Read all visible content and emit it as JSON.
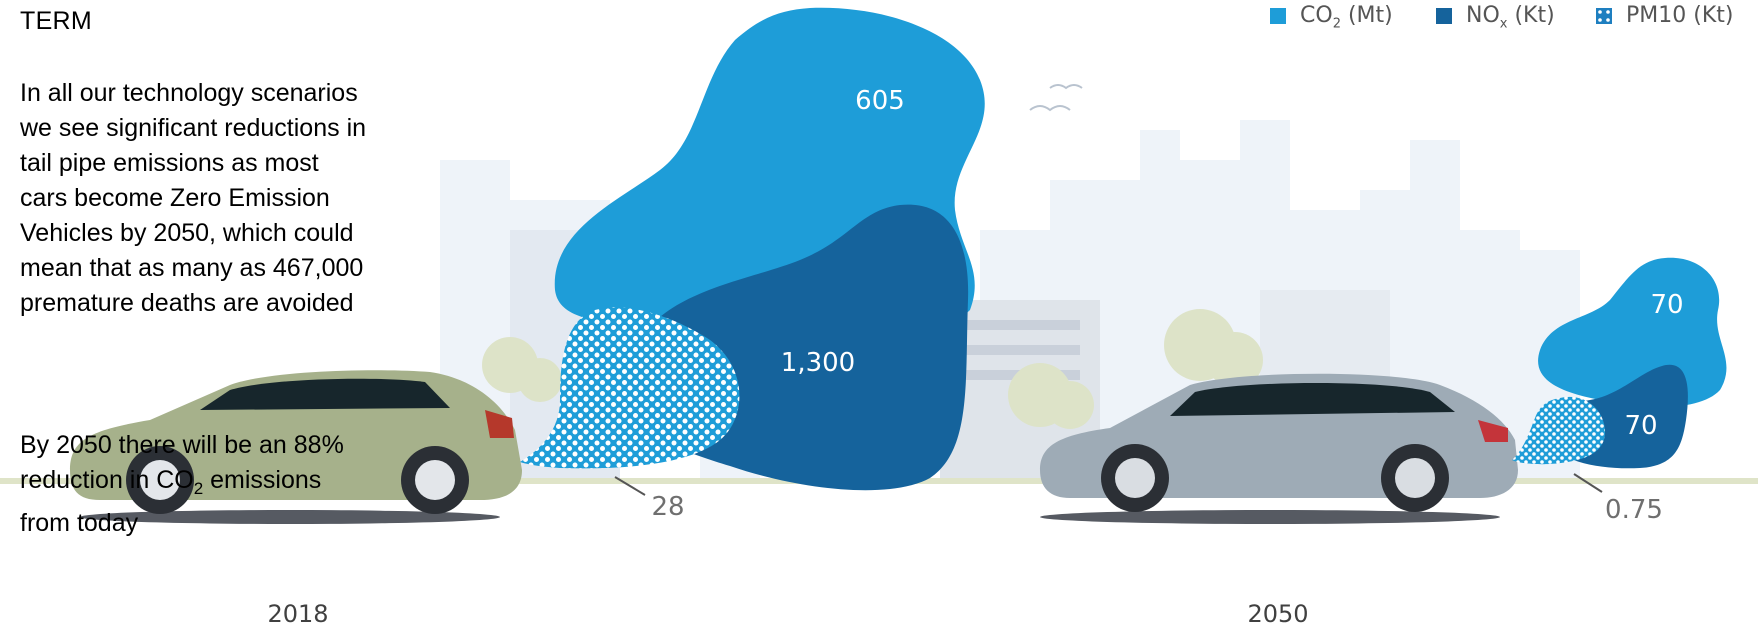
{
  "text": {
    "heading": "TERM",
    "para1": "In all our technology scenarios we see significant reductions in tail pipe emissions as most cars become Zero Emission Vehicles by 2050, which could mean that as many as 467,000 premature deaths are avoided",
    "para2_pre": "By 2050 there will be an 88% reduction in CO",
    "para2_sub": "2",
    "para2_post": " emissions from today"
  },
  "legend": [
    {
      "pre": "CO",
      "sub": "2",
      "post": " (Mt)",
      "color": "#1e9dd8",
      "pattern": false
    },
    {
      "pre": "NO",
      "sub": "x",
      "post": " (Kt)",
      "color": "#15639c",
      "pattern": false
    },
    {
      "pre": "PM10",
      "sub": "",
      "post": " (Kt)",
      "color": "#1e9dd8",
      "pattern": true
    }
  ],
  "chart_data": {
    "type": "bar",
    "categories": [
      "2018",
      "2050"
    ],
    "series": [
      {
        "name": "CO2 (Mt)",
        "values": [
          605,
          70
        ],
        "labels": [
          "605",
          "70"
        ],
        "color": "#1e9dd8"
      },
      {
        "name": "NOx (Kt)",
        "values": [
          1300,
          70
        ],
        "labels": [
          "1,300",
          "70"
        ],
        "color": "#15639c"
      },
      {
        "name": "PM10 (Kt)",
        "values": [
          28,
          0.75
        ],
        "labels": [
          "28",
          "0.75"
        ],
        "color": "#1e9dd8"
      }
    ]
  }
}
